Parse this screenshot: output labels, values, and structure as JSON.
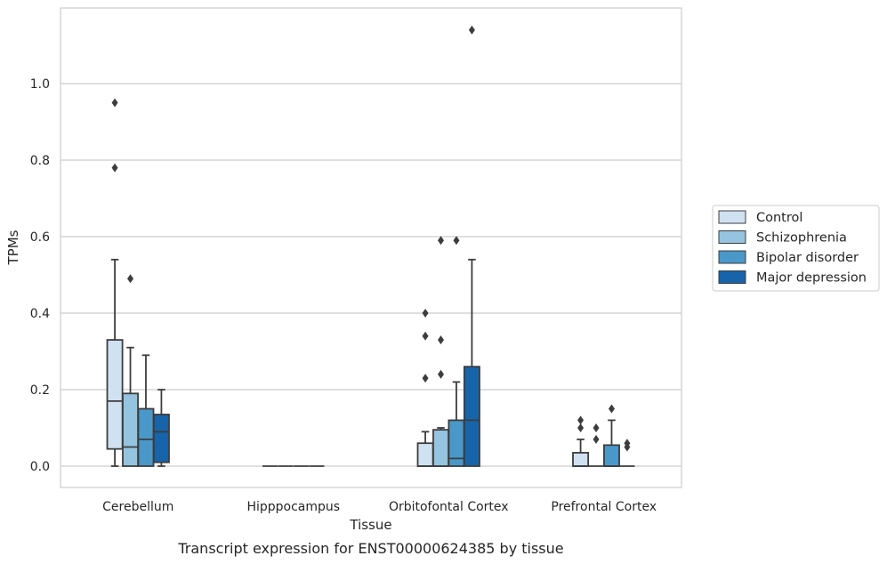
{
  "chart_data": {
    "type": "box",
    "title": "",
    "caption": "Transcript expression for ENST00000624385 by tissue",
    "xlabel": "Tissue",
    "ylabel": "TPMs",
    "ylim": [
      -0.055,
      1.2
    ],
    "yticks": [
      0.0,
      0.2,
      0.4,
      0.6,
      0.8,
      1.0
    ],
    "grid": "horizontal",
    "legend_position": "right",
    "categories": [
      "Cerebellum",
      "Hipppocampus",
      "Orbitofontal Cortex",
      "Prefrontal Cortex"
    ],
    "series": [
      {
        "name": "Control",
        "color": "#d0e1f2",
        "boxes": [
          {
            "whislo": 0.0,
            "q1": 0.045,
            "med": 0.17,
            "q3": 0.33,
            "whishi": 0.54,
            "fliers": [
              0.78,
              0.95
            ]
          },
          {
            "whislo": 0.0,
            "q1": 0.0,
            "med": 0.0,
            "q3": 0.0,
            "whishi": 0.0,
            "fliers": []
          },
          {
            "whislo": 0.0,
            "q1": 0.0,
            "med": 0.0,
            "q3": 0.06,
            "whishi": 0.09,
            "fliers": [
              0.23,
              0.34,
              0.4
            ]
          },
          {
            "whislo": 0.0,
            "q1": 0.0,
            "med": 0.0,
            "q3": 0.035,
            "whishi": 0.07,
            "fliers": [
              0.1,
              0.12
            ]
          }
        ]
      },
      {
        "name": "Schizophrenia",
        "color": "#94c4df",
        "boxes": [
          {
            "whislo": 0.0,
            "q1": 0.0,
            "med": 0.05,
            "q3": 0.19,
            "whishi": 0.31,
            "fliers": [
              0.49
            ]
          },
          {
            "whislo": 0.0,
            "q1": 0.0,
            "med": 0.0,
            "q3": 0.0,
            "whishi": 0.0,
            "fliers": []
          },
          {
            "whislo": 0.0,
            "q1": 0.0,
            "med": 0.0,
            "q3": 0.095,
            "whishi": 0.1,
            "fliers": [
              0.24,
              0.33,
              0.59
            ]
          },
          {
            "whislo": 0.0,
            "q1": 0.0,
            "med": 0.0,
            "q3": 0.0,
            "whishi": 0.0,
            "fliers": [
              0.07,
              0.1
            ]
          }
        ]
      },
      {
        "name": "Bipolar disorder",
        "color": "#4a98c9",
        "boxes": [
          {
            "whislo": 0.0,
            "q1": 0.0,
            "med": 0.07,
            "q3": 0.15,
            "whishi": 0.29,
            "fliers": []
          },
          {
            "whislo": 0.0,
            "q1": 0.0,
            "med": 0.0,
            "q3": 0.0,
            "whishi": 0.0,
            "fliers": []
          },
          {
            "whislo": 0.0,
            "q1": 0.0,
            "med": 0.02,
            "q3": 0.12,
            "whishi": 0.22,
            "fliers": [
              0.59
            ]
          },
          {
            "whislo": 0.0,
            "q1": 0.0,
            "med": 0.0,
            "q3": 0.055,
            "whishi": 0.12,
            "fliers": [
              0.15
            ]
          }
        ]
      },
      {
        "name": "Major depression",
        "color": "#1764ab",
        "boxes": [
          {
            "whislo": 0.0,
            "q1": 0.01,
            "med": 0.09,
            "q3": 0.135,
            "whishi": 0.2,
            "fliers": []
          },
          {
            "whislo": 0.0,
            "q1": 0.0,
            "med": 0.0,
            "q3": 0.0,
            "whishi": 0.0,
            "fliers": []
          },
          {
            "whislo": 0.0,
            "q1": 0.0,
            "med": 0.12,
            "q3": 0.26,
            "whishi": 0.54,
            "fliers": [
              1.14
            ]
          },
          {
            "whislo": 0.0,
            "q1": 0.0,
            "med": 0.0,
            "q3": 0.0,
            "whishi": 0.0,
            "fliers": [
              0.05,
              0.06
            ]
          }
        ]
      }
    ]
  }
}
